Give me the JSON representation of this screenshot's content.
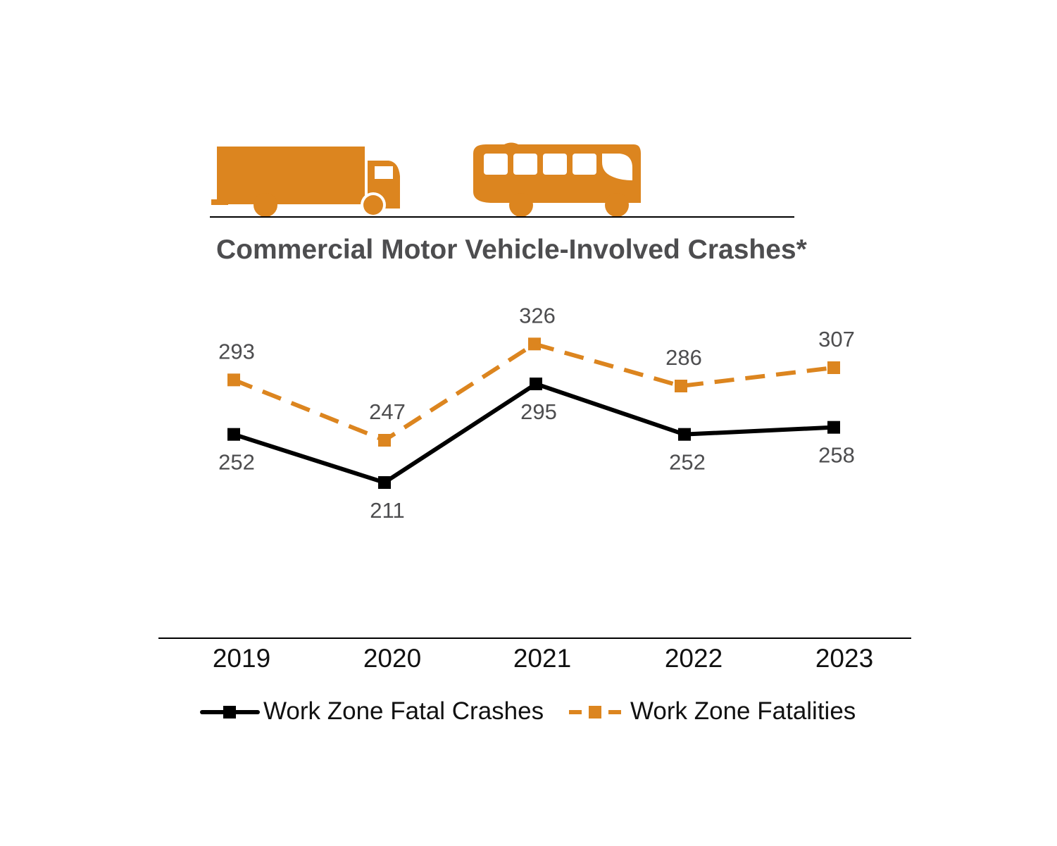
{
  "colors": {
    "accent": "#dc851f",
    "crashes": "#000000",
    "text_dark": "#4d4d4f",
    "axis": "#000000"
  },
  "icons": [
    "truck-icon",
    "bus-icon"
  ],
  "chart_data": {
    "type": "line",
    "title": "Commercial Motor Vehicle-Involved Crashes*",
    "categories": [
      "2019",
      "2020",
      "2021",
      "2022",
      "2023"
    ],
    "series": [
      {
        "name": "Work Zone Fatal Crashes",
        "values": [
          252,
          211,
          295,
          252,
          258
        ],
        "color": "#000000",
        "style": "solid",
        "marker": "square",
        "label_position": "below"
      },
      {
        "name": "Work Zone Fatalities",
        "values": [
          293,
          247,
          326,
          286,
          307
        ],
        "color": "#dc851f",
        "style": "dashed",
        "marker": "square",
        "label_position": "above"
      }
    ],
    "ylim": [
      150,
      360
    ],
    "xlabel": "",
    "ylabel": "",
    "grid": false,
    "legend_position": "bottom"
  }
}
